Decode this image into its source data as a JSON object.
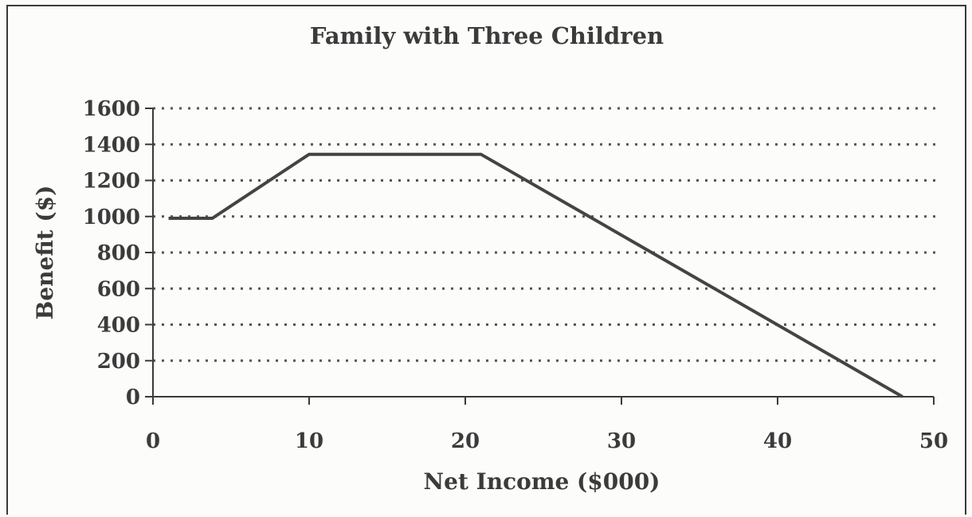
{
  "chart_data": {
    "type": "line",
    "title": "Family with Three Children",
    "xlabel": "Net Income ($000)",
    "ylabel": "Benefit ($)",
    "xlim": [
      0,
      50
    ],
    "ylim": [
      0,
      1600
    ],
    "x_ticks": [
      0,
      10,
      20,
      30,
      40,
      50
    ],
    "y_ticks": [
      0,
      200,
      400,
      600,
      800,
      1000,
      1200,
      1400,
      1600
    ],
    "grid": "horizontal dotted",
    "colors": {
      "line": "#444444",
      "text": "#3b3b3b",
      "grid": "#555555"
    },
    "series": [
      {
        "x": [
          1,
          3.8,
          10,
          21,
          48
        ],
        "y": [
          990,
          990,
          1345,
          1345,
          0
        ]
      }
    ]
  }
}
